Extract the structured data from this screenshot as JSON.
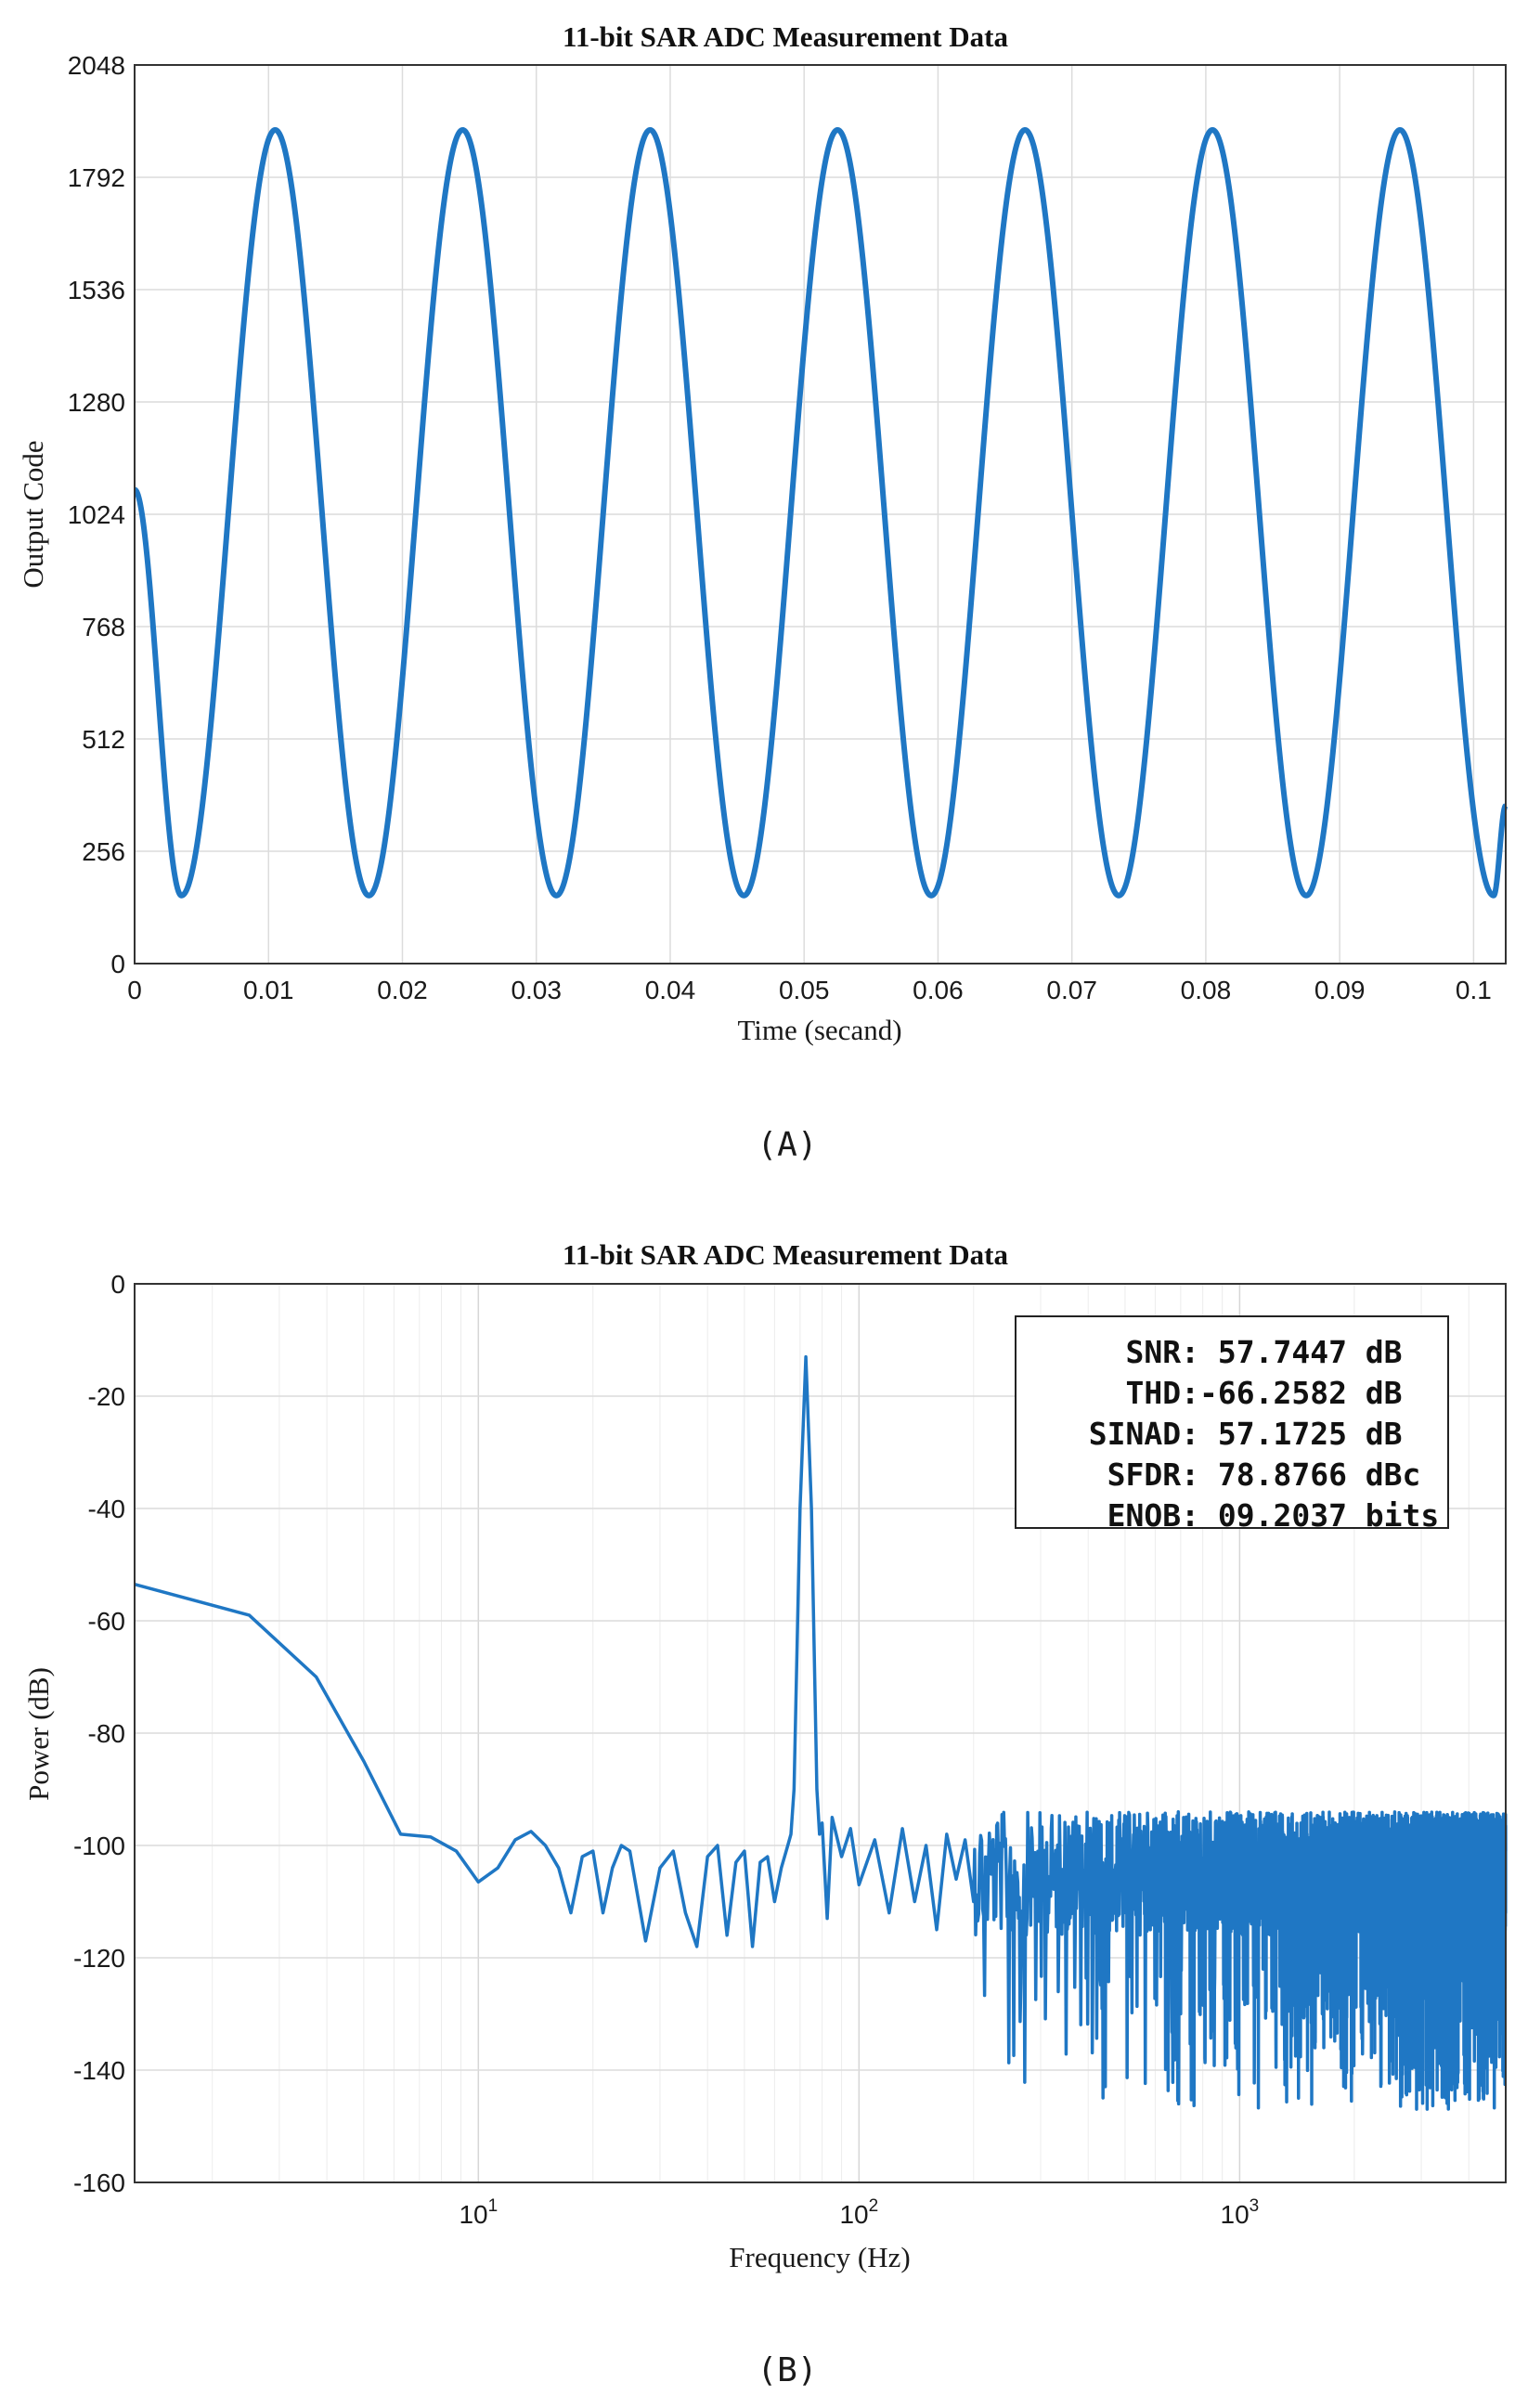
{
  "chart_data": [
    {
      "type": "line",
      "title": "11-bit SAR ADC Measurement Data",
      "xlabel": "Time (secand)",
      "ylabel": "Output Code",
      "xlim": [
        0,
        0.1024
      ],
      "ylim": [
        0,
        2048
      ],
      "xticks": [
        0,
        0.01,
        0.02,
        0.03,
        0.04,
        0.05,
        0.06,
        0.07,
        0.08,
        0.09,
        0.1
      ],
      "xtick_labels": [
        "0",
        "0.01",
        "0.02",
        "0.03",
        "0.04",
        "0.05",
        "0.06",
        "0.07",
        "0.08",
        "0.09",
        "0.1"
      ],
      "yticks": [
        0,
        256,
        512,
        768,
        1024,
        1280,
        1536,
        1792,
        2048
      ],
      "ytick_labels": [
        "0",
        "256",
        "512",
        "768",
        "1024",
        "1280",
        "1536",
        "1792",
        "2048"
      ],
      "grid": true,
      "color": "#1f77c4",
      "series": [
        {
          "x": [
            0,
            0.0035,
            0.0105,
            0.0175,
            0.0245,
            0.0315,
            0.0385,
            0.0455,
            0.0525,
            0.0595,
            0.0665,
            0.0735,
            0.0805,
            0.0875,
            0.0945,
            0.1015,
            0.1024
          ],
          "y": [
            1080,
            155,
            1900,
            155,
            1900,
            155,
            1900,
            155,
            1900,
            155,
            1900,
            155,
            1900,
            155,
            1900,
            155,
            360
          ]
        }
      ],
      "caption": "(A)"
    },
    {
      "type": "line",
      "title": "11-bit SAR ADC Measurement Data",
      "xlabel": "Frequency (Hz)",
      "ylabel": "Power (dB)",
      "xscale": "log",
      "xlim": [
        1.25,
        5000
      ],
      "ylim": [
        -160,
        0
      ],
      "xticks": [
        10,
        100,
        1000
      ],
      "xtick_labels": [
        {
          "base": "10",
          "exp": "1"
        },
        {
          "base": "10",
          "exp": "2"
        },
        {
          "base": "10",
          "exp": "3"
        }
      ],
      "yticks": [
        0,
        -20,
        -40,
        -60,
        -80,
        -100,
        -120,
        -140,
        -160
      ],
      "ytick_labels": [
        "0",
        "-20",
        "-40",
        "-60",
        "-80",
        "-100",
        "-120",
        "-140",
        "-160"
      ],
      "grid": true,
      "color": "#1f77c4",
      "series": [
        {
          "x": [
            1.25,
            2.5,
            3.75,
            5,
            6.25,
            7.5,
            8.75,
            10,
            11.25,
            12.5,
            13.75,
            15,
            16.25,
            17.5,
            18.75,
            20,
            21.25,
            22.5,
            23.75,
            25,
            27.5,
            30,
            32.5,
            35,
            37.5,
            40,
            42.5,
            45,
            47.5,
            50,
            52.5,
            55,
            57.5,
            60,
            62.5,
            65,
            66.25,
            67.5,
            70,
            72.5,
            75,
            77.5,
            78.75,
            80,
            82.5,
            85,
            90,
            95,
            100,
            110,
            120,
            130,
            140,
            150,
            160,
            170,
            180,
            190,
            200
          ],
          "y": [
            -53.5,
            -59,
            -70,
            -85,
            -98,
            -98.5,
            -101,
            -106.5,
            -104,
            -99,
            -97.5,
            -100,
            -104,
            -112,
            -102,
            -101,
            -112,
            -104,
            -100,
            -101,
            -117,
            -104,
            -101,
            -112,
            -118,
            -102,
            -100,
            -116,
            -103,
            -101,
            -118,
            -103,
            -102,
            -110,
            -104,
            -100,
            -98,
            -90,
            -40,
            -13,
            -40,
            -90,
            -98,
            -96,
            -113,
            -95,
            -102,
            -97,
            -107,
            -99,
            -112,
            -97,
            -110,
            -100,
            -115,
            -98,
            -106,
            -99,
            -110
          ]
        }
      ],
      "noise_band": {
        "x_range": [
          200,
          5000
        ],
        "y_center": -106,
        "y_min": -147,
        "y_max": -94
      },
      "annotations": [
        {
          "label": "SNR:",
          "value": " 57.7447 dB"
        },
        {
          "label": "THD:",
          "value": "-66.2582 dB"
        },
        {
          "label": "SINAD:",
          "value": " 57.1725 dB"
        },
        {
          "label": "SFDR:",
          "value": " 78.8766 dBc"
        },
        {
          "label": "ENOB:",
          "value": " 09.2037 bits"
        }
      ],
      "caption": "(B)"
    }
  ]
}
